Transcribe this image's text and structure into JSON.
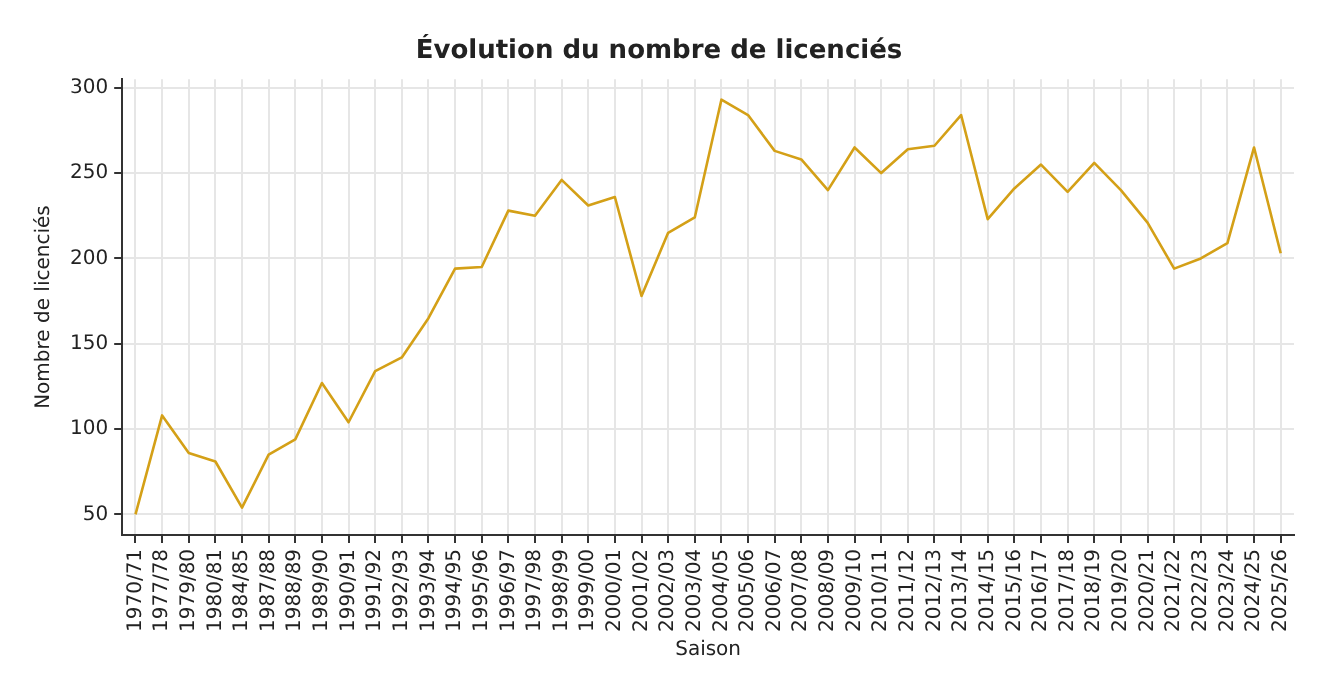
{
  "chart_data": {
    "type": "line",
    "title": "Évolution du nombre de licenciés",
    "xlabel": "Saison",
    "ylabel": "Nombre de licenciés",
    "categories": [
      "1970/71",
      "1977/78",
      "1979/80",
      "1980/81",
      "1984/85",
      "1987/88",
      "1988/89",
      "1989/90",
      "1990/91",
      "1991/92",
      "1992/93",
      "1993/94",
      "1994/95",
      "1995/96",
      "1996/97",
      "1997/98",
      "1998/99",
      "1999/00",
      "2000/01",
      "2001/02",
      "2002/03",
      "2003/04",
      "2004/05",
      "2005/06",
      "2006/07",
      "2007/08",
      "2008/09",
      "2009/10",
      "2010/11",
      "2011/12",
      "2012/13",
      "2013/14",
      "2014/15",
      "2015/16",
      "2016/17",
      "2017/18",
      "2018/19",
      "2019/20",
      "2020/21",
      "2021/22",
      "2022/23",
      "2023/24",
      "2024/25",
      "2025/26"
    ],
    "series": [
      {
        "color": "#d4a017",
        "values": [
          50,
          108,
          86,
          81,
          54,
          85,
          94,
          127,
          104,
          134,
          142,
          165,
          194,
          195,
          228,
          225,
          246,
          231,
          236,
          178,
          215,
          224,
          293,
          284,
          263,
          258,
          240,
          265,
          250,
          264,
          266,
          284,
          223,
          241,
          255,
          239,
          256,
          240,
          221,
          194,
          200,
          209,
          265,
          203
        ]
      }
    ],
    "ylim": [
      38,
      305
    ],
    "yticks": [
      50,
      100,
      150,
      200,
      250,
      300
    ],
    "grid": true,
    "legend": false,
    "marker": "none",
    "line_style": "solid"
  }
}
